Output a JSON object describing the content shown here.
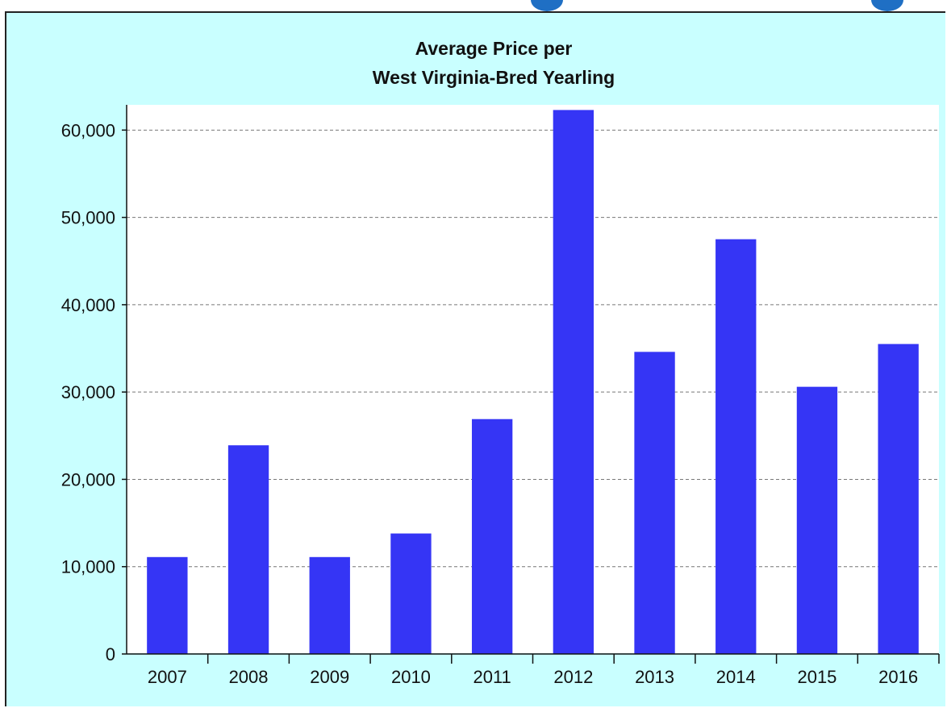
{
  "chart_data": {
    "type": "bar",
    "title": [
      "Average Price per",
      "West Virginia-Bred Yearling"
    ],
    "xlabel": "",
    "ylabel": "",
    "categories": [
      "2007",
      "2008",
      "2009",
      "2010",
      "2011",
      "2012",
      "2013",
      "2014",
      "2015",
      "2016"
    ],
    "values": [
      11100,
      23900,
      11100,
      13800,
      26900,
      62300,
      34600,
      47500,
      30600,
      35500
    ],
    "ylim": [
      0,
      62000
    ],
    "yticks": [
      0,
      10000,
      20000,
      30000,
      40000,
      50000,
      60000
    ],
    "ytick_labels": [
      "0",
      "10,000",
      "20,000",
      "30,000",
      "40,000",
      "50,000",
      "60,000"
    ],
    "grid": true,
    "legend": "none"
  },
  "colors": {
    "panel_background": "#c9ffff",
    "plot_background": "#ffffff",
    "bar": "#3535f5",
    "gridline": "#777777",
    "top_accent": "#1f6fc4"
  }
}
